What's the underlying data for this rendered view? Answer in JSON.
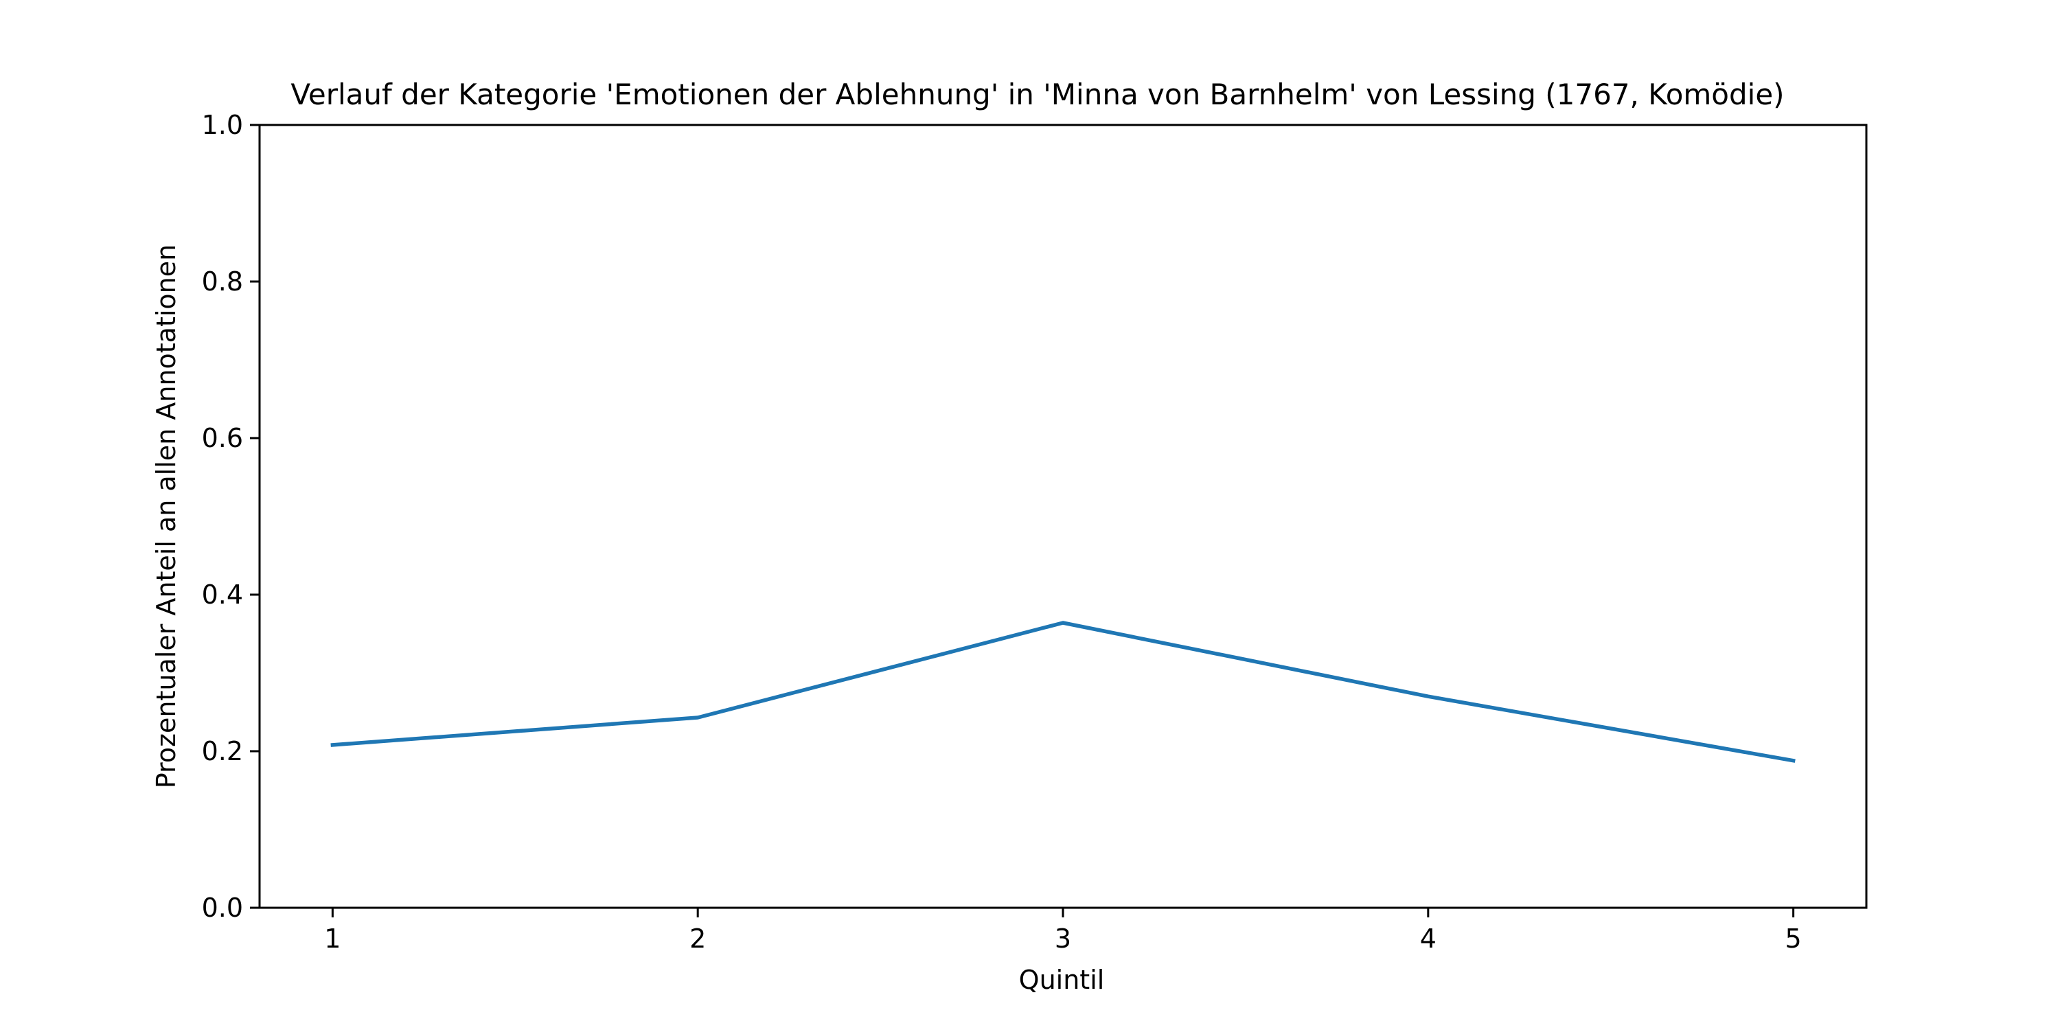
{
  "chart_data": {
    "type": "line",
    "title": "Verlauf der Kategorie 'Emotionen der Ablehnung' in 'Minna von Barnhelm' von Lessing (1767, Komödie)",
    "xlabel": "Quintil",
    "ylabel": "Prozentualer Anteil an allen Annotationen",
    "x": [
      1,
      2,
      3,
      4,
      5
    ],
    "xticks": [
      "1",
      "2",
      "3",
      "4",
      "5"
    ],
    "yticks": [
      "0.0",
      "0.2",
      "0.4",
      "0.6",
      "0.8",
      "1.0"
    ],
    "ylim": [
      0,
      1
    ],
    "xlim": [
      0.8,
      5.2
    ],
    "grid": false,
    "series": [
      {
        "values": [
          0.208,
          0.243,
          0.364,
          0.27,
          0.188
        ],
        "color": "#1f77b4"
      }
    ]
  }
}
